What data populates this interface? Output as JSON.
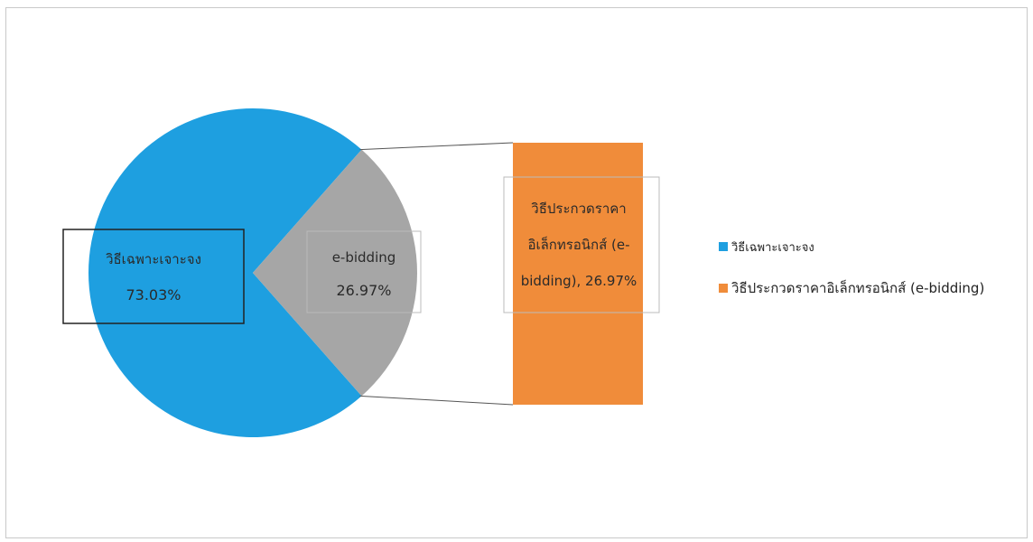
{
  "chart_data": {
    "type": "pie",
    "title": "",
    "slices": [
      {
        "label": "วิธีเฉพาะเจาะจง",
        "value": 73.03,
        "color": "#1e9fe0",
        "data_label_name": "วิธีเฉพาะเจาะจง",
        "data_label_value": "73.03%"
      },
      {
        "label": "วิธีประกวดราคาอิเล็กทรอนิกส์ (e-bidding)",
        "value": 26.97,
        "color": "#a6a6a6",
        "data_label_name": "e-bidding",
        "data_label_value": "26.97%"
      }
    ],
    "bar_of_pie": {
      "color": "#f08c3a",
      "value": 26.97,
      "label_lines": [
        "วิธีประกวดราคา",
        "อิเล็กทรอนิกส์ (e-",
        "bidding), 26.97%"
      ]
    },
    "legend": {
      "position": "right",
      "entries": [
        {
          "label": "วิธีเฉพาะเจาะจง",
          "color": "#1e9fe0"
        },
        {
          "label": "วิธีประกวดราคาอิเล็กทรอนิกส์ (e-bidding)",
          "color": "#f08c3a"
        }
      ]
    }
  }
}
